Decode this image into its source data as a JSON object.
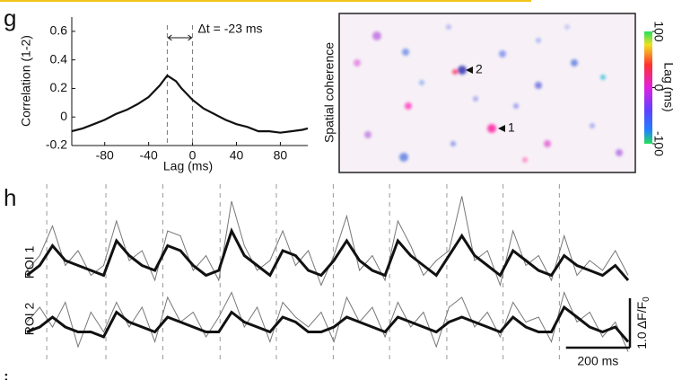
{
  "panels": [
    "g",
    "h",
    "i"
  ],
  "image": {
    "label": "Spatial coherence",
    "rois": [
      "2",
      "1"
    ],
    "colorbar": {
      "label": "Lag (ms)",
      "lim": [
        -100,
        100
      ],
      "ticks": [
        100,
        0,
        -100
      ]
    }
  },
  "chart_data": [
    {
      "type": "line",
      "ylabel": "Correlation (1-2)",
      "xlabel": "Lag (ms)",
      "annotation": "Δt = -23 ms",
      "x": [
        -110,
        -100,
        -90,
        -80,
        -70,
        -60,
        -50,
        -40,
        -30,
        -23,
        -15,
        -10,
        0,
        10,
        20,
        30,
        40,
        50,
        60,
        70,
        80,
        90,
        100,
        105
      ],
      "values": [
        -0.1,
        -0.08,
        -0.05,
        -0.02,
        0.02,
        0.05,
        0.09,
        0.14,
        0.22,
        0.29,
        0.25,
        0.2,
        0.12,
        0.06,
        0.02,
        -0.02,
        -0.05,
        -0.07,
        -0.1,
        -0.1,
        -0.11,
        -0.1,
        -0.09,
        -0.08
      ],
      "color": "#111111",
      "markers": [
        -23,
        0
      ],
      "xlim": [
        -110,
        105
      ],
      "xticks": [
        -80,
        -40,
        0,
        40,
        80
      ],
      "ylim": [
        -0.2,
        0.7
      ],
      "yticks": [
        -0.2,
        0,
        0.2,
        0.4,
        0.6
      ]
    },
    {
      "type": "traces",
      "x": [
        0,
        40,
        80,
        120,
        160,
        200,
        240,
        280,
        320,
        360,
        400,
        440,
        480,
        520,
        560,
        600,
        640,
        680,
        720,
        760,
        800,
        840,
        880,
        920,
        960,
        1000,
        1040,
        1080,
        1120,
        1160,
        1200,
        1240,
        1280,
        1320,
        1360,
        1400,
        1440,
        1480,
        1520,
        1560,
        1600,
        1640,
        1680,
        1720,
        1760,
        1800,
        1840,
        1880
      ],
      "event_times": [
        62,
        247,
        425,
        604,
        780,
        958,
        1134,
        1313,
        1489,
        1665
      ],
      "series": [
        {
          "name": "ROI 1",
          "color": "#111111",
          "raw_color": "#777777",
          "values": [
            0.1,
            0.3,
            0.7,
            0.4,
            0.3,
            0.2,
            0.1,
            0.8,
            0.5,
            0.3,
            0.2,
            0.7,
            0.6,
            0.3,
            0.1,
            0.2,
            1.0,
            0.5,
            0.3,
            0.1,
            0.6,
            0.5,
            0.2,
            0.1,
            0.4,
            0.8,
            0.4,
            0.2,
            0.1,
            0.8,
            0.5,
            0.3,
            0.1,
            0.5,
            0.9,
            0.5,
            0.3,
            0.1,
            0.6,
            0.4,
            0.2,
            0.1,
            0.5,
            0.3,
            0.2,
            0.1,
            0.3,
            0.0
          ],
          "raw": [
            0.2,
            0.5,
            1.1,
            0.3,
            0.6,
            0.1,
            0.3,
            1.2,
            0.4,
            0.6,
            0.0,
            1.0,
            0.9,
            0.2,
            0.5,
            0.0,
            1.6,
            0.7,
            0.2,
            0.4,
            1.0,
            0.3,
            0.6,
            -0.1,
            0.5,
            1.3,
            0.2,
            0.5,
            0.0,
            1.2,
            0.7,
            0.1,
            0.4,
            0.6,
            1.7,
            0.4,
            0.6,
            -0.1,
            1.0,
            0.3,
            0.5,
            0.0,
            0.9,
            0.1,
            0.4,
            0.2,
            0.6,
            0.1
          ]
        },
        {
          "name": "ROI 2",
          "color": "#111111",
          "raw_color": "#777777",
          "values": [
            0.1,
            0.2,
            0.4,
            0.2,
            0.1,
            0.1,
            0.0,
            0.5,
            0.3,
            0.2,
            0.1,
            0.4,
            0.3,
            0.2,
            0.1,
            0.1,
            0.5,
            0.3,
            0.2,
            0.1,
            0.4,
            0.3,
            0.1,
            0.1,
            0.2,
            0.4,
            0.3,
            0.2,
            0.1,
            0.4,
            0.3,
            0.2,
            0.1,
            0.3,
            0.4,
            0.3,
            0.2,
            0.1,
            0.4,
            0.2,
            0.1,
            0.1,
            0.6,
            0.4,
            0.2,
            0.1,
            0.2,
            -0.1
          ],
          "raw": [
            0.3,
            0.6,
            0.2,
            0.7,
            -0.2,
            0.5,
            0.1,
            0.7,
            0.2,
            0.6,
            -0.1,
            0.8,
            0.3,
            0.5,
            0.0,
            0.4,
            0.9,
            0.2,
            0.6,
            -0.1,
            0.7,
            0.4,
            0.2,
            0.5,
            -0.1,
            0.8,
            0.3,
            0.6,
            0.0,
            0.7,
            0.2,
            0.5,
            -0.2,
            0.6,
            0.8,
            0.2,
            0.5,
            0.0,
            0.7,
            0.3,
            0.4,
            -0.1,
            0.9,
            0.3,
            0.5,
            0.0,
            0.3,
            -0.3
          ]
        }
      ],
      "scale_y": {
        "value": 1.0,
        "label": "1.0 ΔF/F",
        "sub": "0"
      },
      "scale_x": {
        "value": 200,
        "label": "200 ms"
      }
    }
  ]
}
